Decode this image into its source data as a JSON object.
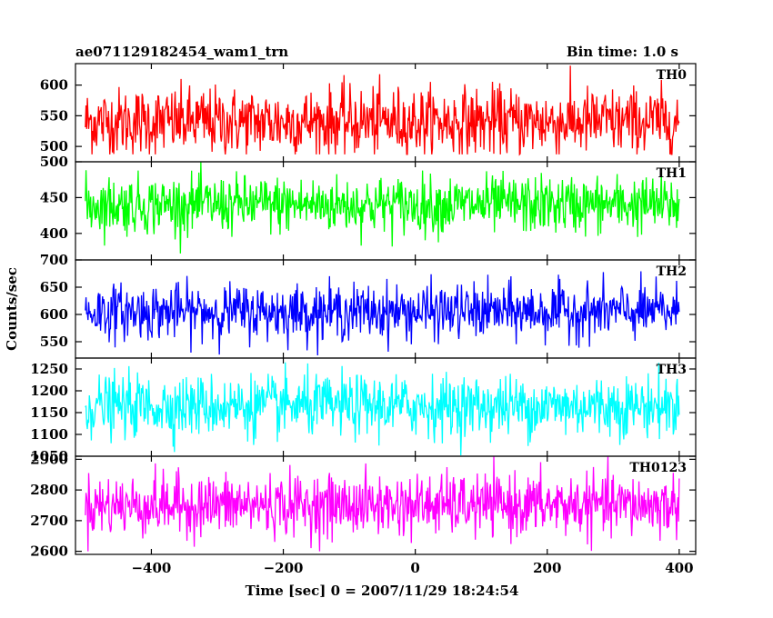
{
  "header": {
    "left": "ae071129182454_wam1_trn",
    "right": "Bin time: 1.0 s"
  },
  "chart_data": {
    "type": "line",
    "title": "ae071129182454_wam1_trn",
    "subtitle": "Bin time: 1.0 s",
    "xlabel": "Time [sec] 0 = 2007/11/29 18:24:54",
    "ylabel": "Counts/sec",
    "xlim": [
      -515,
      425
    ],
    "x_ticks": [
      -400,
      -200,
      0,
      200,
      400
    ],
    "x_tick_labels": [
      "−400",
      "−200",
      "0",
      "200",
      "400"
    ],
    "x_range_data": [
      -500,
      400
    ],
    "series_style": "noisy binned light curve, 1 s bins",
    "panels": [
      {
        "name": "TH0",
        "color": "#ff0000",
        "ylim": [
          475,
          635
        ],
        "yticks": [
          500,
          550,
          600
        ],
        "mean": 540,
        "sd": 28,
        "min": 487,
        "max": 632
      },
      {
        "name": "TH1",
        "color": "#00ff00",
        "ylim": [
          363,
          500
        ],
        "yticks": [
          400,
          450,
          500
        ],
        "mean": 440,
        "sd": 20,
        "min": 372,
        "max": 500
      },
      {
        "name": "TH2",
        "color": "#0000ff",
        "ylim": [
          520,
          700
        ],
        "yticks": [
          550,
          600,
          650,
          700
        ],
        "mean": 605,
        "sd": 25,
        "min": 525,
        "max": 698
      },
      {
        "name": "TH3",
        "color": "#00ffff",
        "ylim": [
          1050,
          1275
        ],
        "yticks": [
          1050,
          1100,
          1150,
          1200,
          1250
        ],
        "mean": 1165,
        "sd": 35,
        "min": 1052,
        "max": 1275
      },
      {
        "name": "TH0123",
        "color": "#ff00ff",
        "ylim": [
          2590,
          2910
        ],
        "yticks": [
          2600,
          2700,
          2800,
          2900
        ],
        "mean": 2750,
        "sd": 50,
        "min": 2600,
        "max": 2910
      }
    ]
  }
}
